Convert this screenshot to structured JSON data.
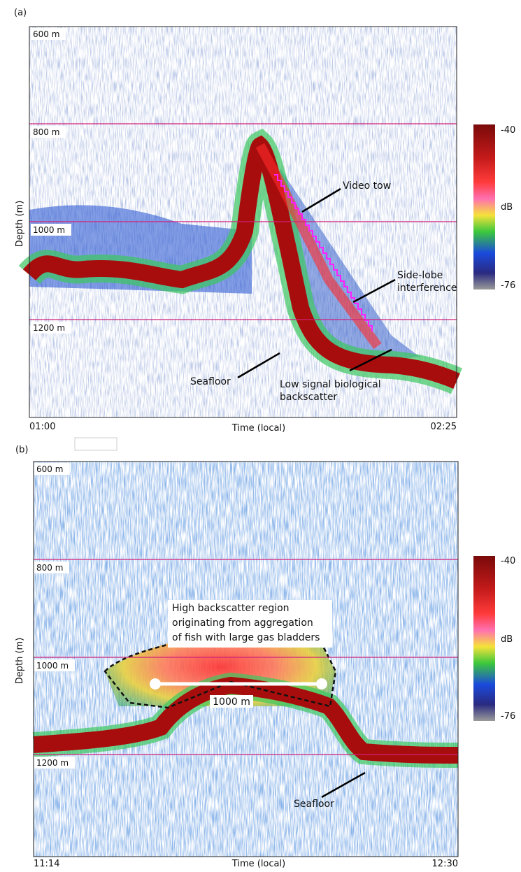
{
  "panels": [
    {
      "label": "(a)",
      "depth_labels": [
        "600 m",
        "800 m",
        "1000 m",
        "1200 m"
      ],
      "x_start": "01:00",
      "x_title": "Time (local)",
      "x_end": "02:25",
      "y_title": "Depth (m)",
      "colorbar": {
        "max": "-40",
        "unit": "dB",
        "min": "-76"
      },
      "annotations": [
        {
          "lines": [
            "Video tow"
          ]
        },
        {
          "lines": [
            "Side-lobe",
            "interference"
          ]
        },
        {
          "lines": [
            "Seafloor"
          ]
        },
        {
          "lines": [
            "Low signal biological",
            "backscatter"
          ]
        }
      ]
    },
    {
      "label": "(b)",
      "depth_labels": [
        "600 m",
        "800 m",
        "1000 m",
        "1200 m"
      ],
      "x_start": "11:14",
      "x_title": "Time (local)",
      "x_end": "12:30",
      "y_title": "Depth (m)",
      "colorbar": {
        "max": "-40",
        "unit": "dB",
        "min": "-76"
      },
      "annotations": [
        {
          "lines": [
            "High backscatter region",
            "originating from aggregation",
            "of fish with large gas bladders"
          ]
        },
        {
          "lines": [
            "1000 m"
          ]
        },
        {
          "lines": [
            "Seafloor"
          ]
        }
      ]
    }
  ]
}
